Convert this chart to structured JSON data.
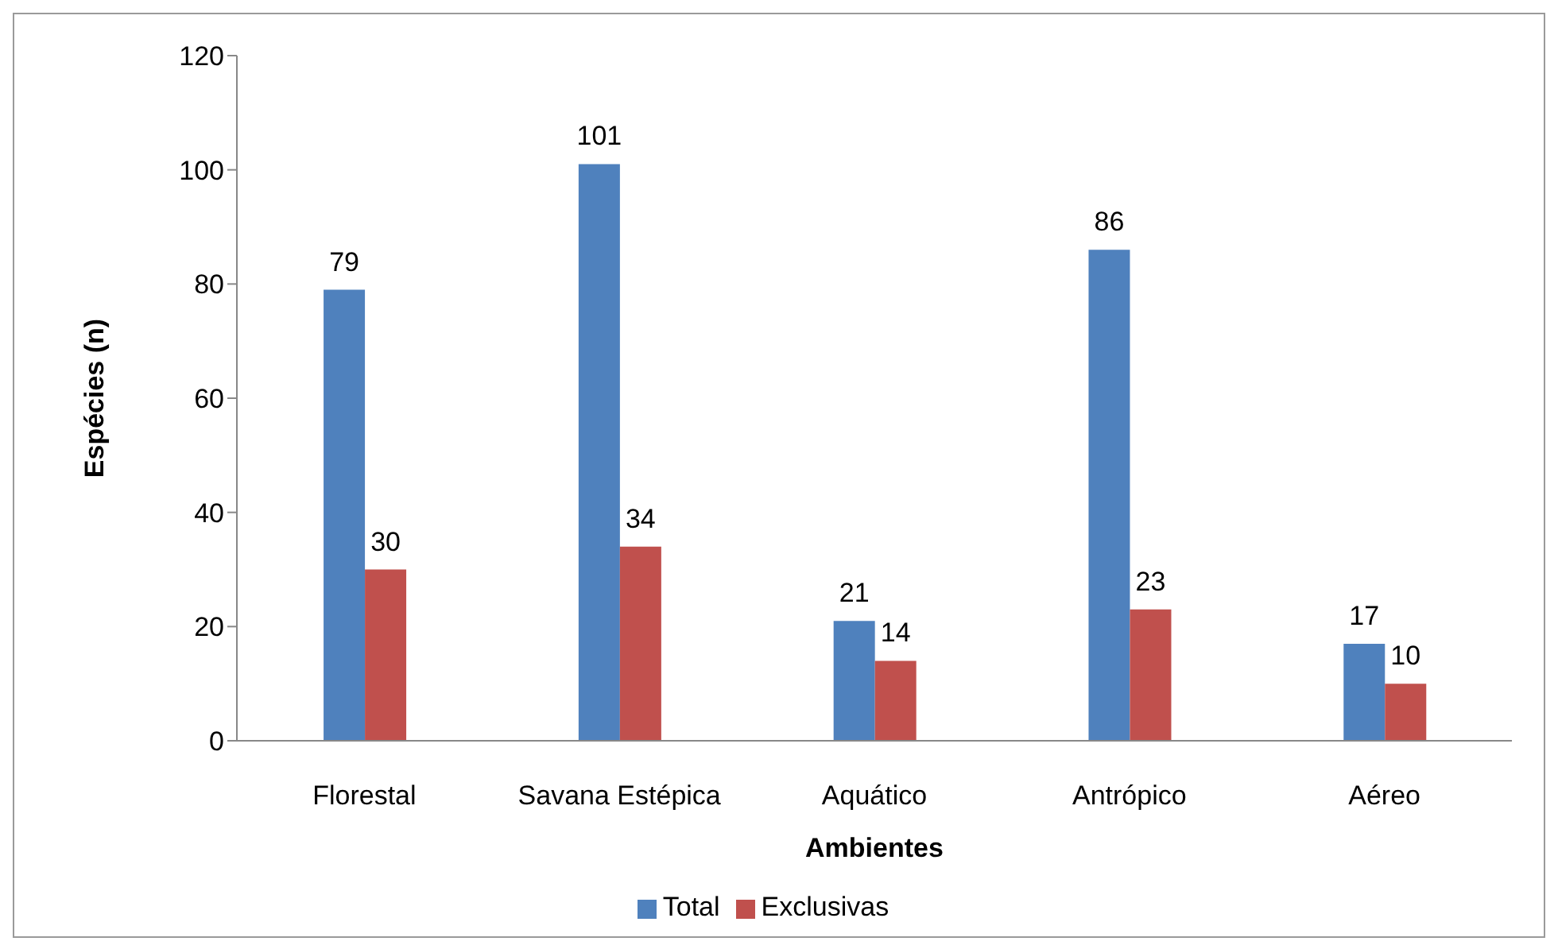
{
  "chart_data": {
    "type": "bar",
    "xlabel": "Ambientes",
    "ylabel": "Espécies (n)",
    "categories": [
      "Florestal",
      "Savana Estépica",
      "Aquático",
      "Antrópico",
      "Aéreo"
    ],
    "series": [
      {
        "name": "Total",
        "color": "#4f81bd",
        "values": [
          79,
          101,
          21,
          86,
          17
        ]
      },
      {
        "name": "Exclusivas",
        "color": "#c0504d",
        "values": [
          30,
          34,
          14,
          23,
          10
        ]
      }
    ],
    "ylim": [
      0,
      120
    ],
    "yticks": [
      0,
      20,
      40,
      60,
      80,
      100,
      120
    ],
    "data_labels": true,
    "legend": "bottom",
    "grid": false
  }
}
